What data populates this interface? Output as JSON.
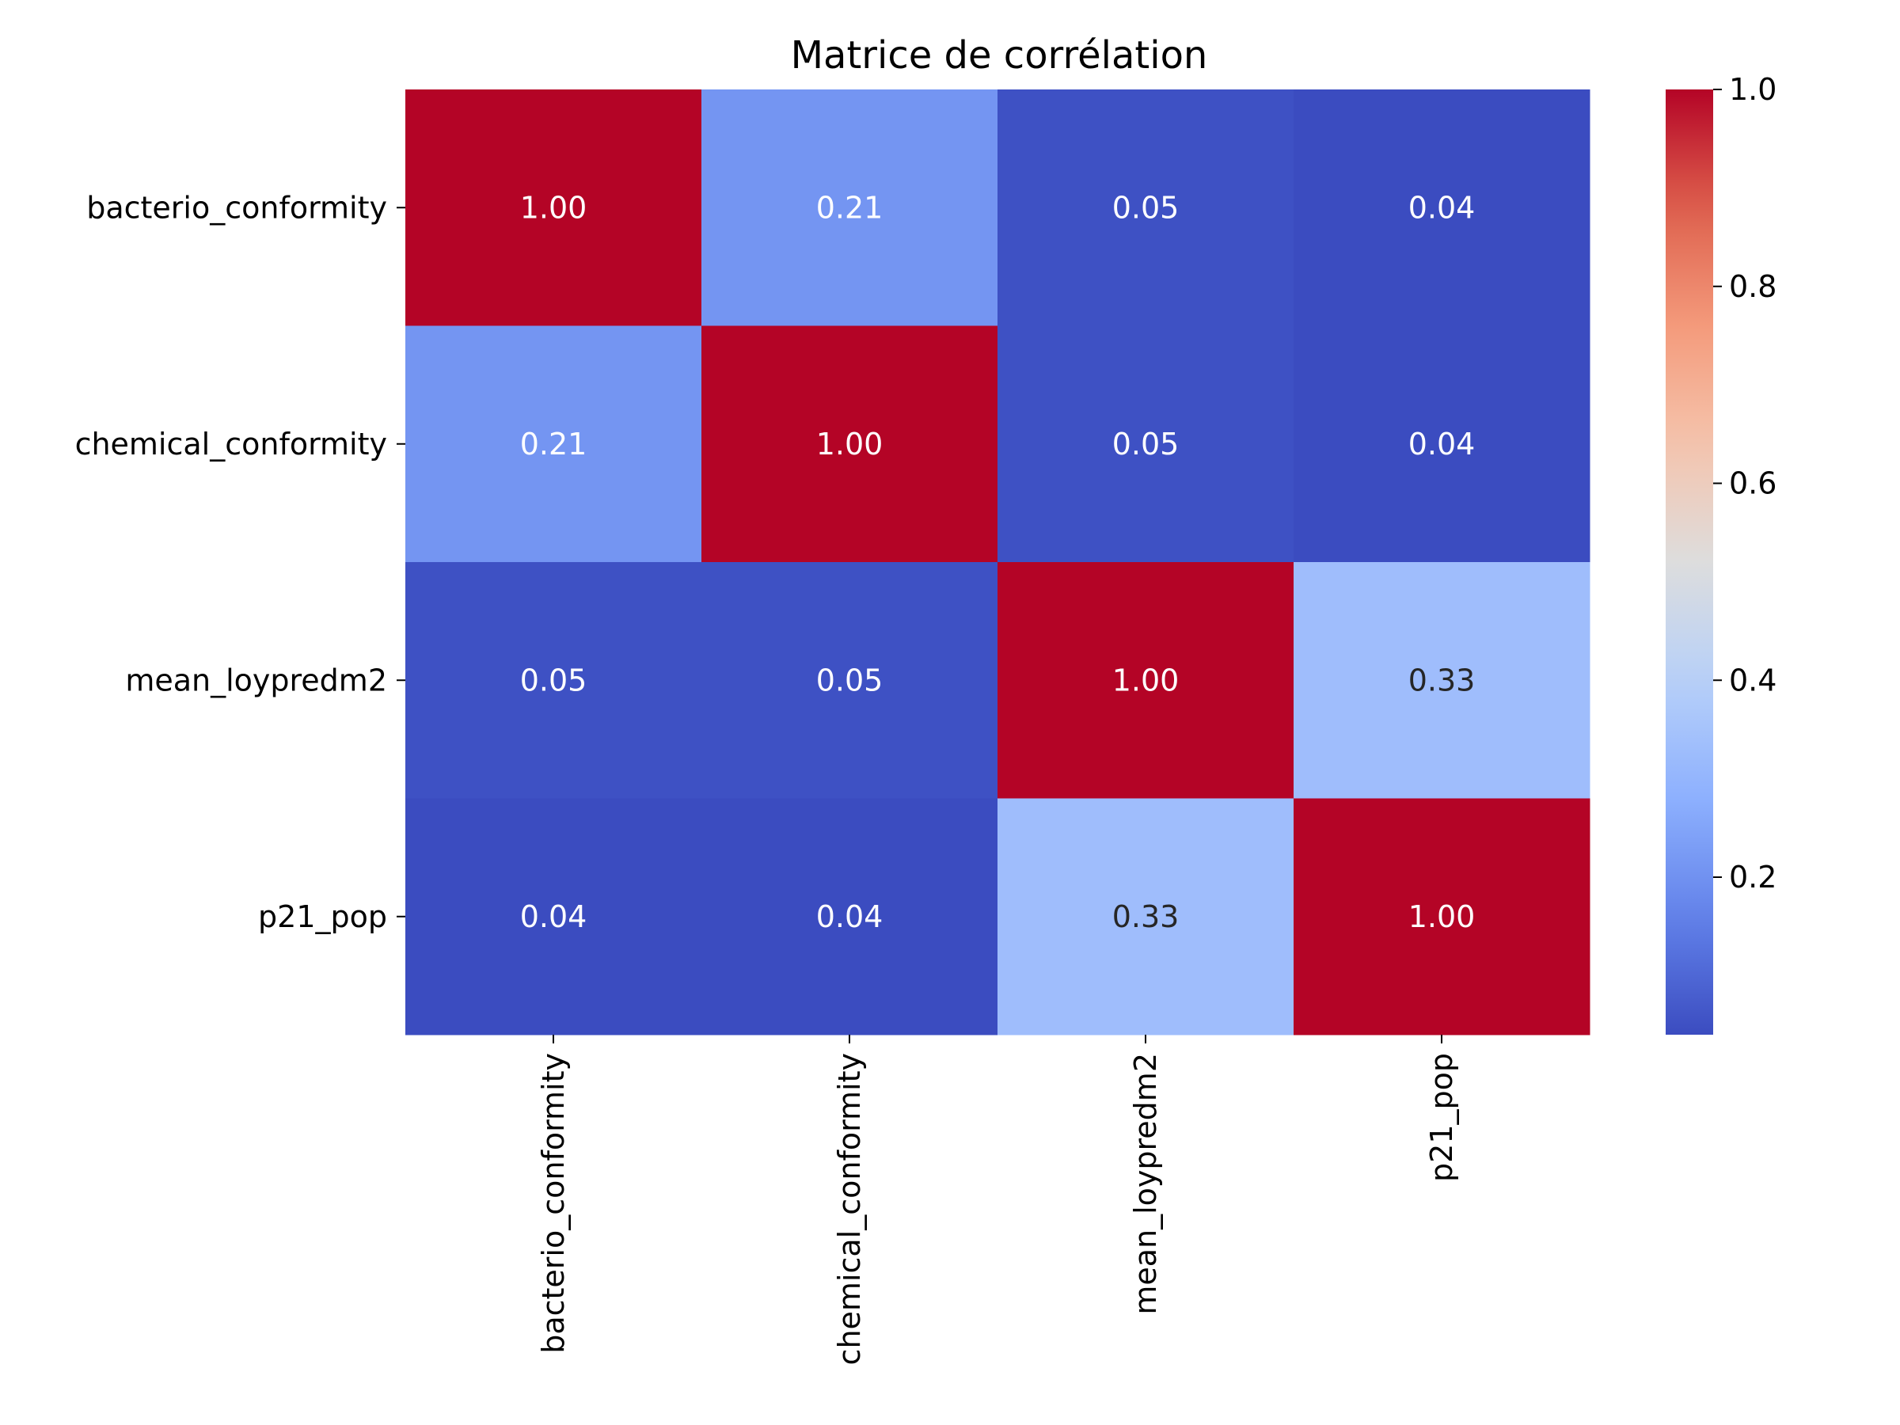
{
  "chart_data": {
    "type": "heatmap",
    "title": "Matrice de corrélation",
    "xlabel": "",
    "ylabel": "",
    "x_categories": [
      "bacterio_conformity",
      "chemical_conformity",
      "mean_loypredm2",
      "p21_pop"
    ],
    "y_categories": [
      "bacterio_conformity",
      "chemical_conformity",
      "mean_loypredm2",
      "p21_pop"
    ],
    "values": [
      [
        1.0,
        0.21,
        0.05,
        0.04
      ],
      [
        0.21,
        1.0,
        0.05,
        0.04
      ],
      [
        0.05,
        0.05,
        1.0,
        0.33
      ],
      [
        0.04,
        0.04,
        0.33,
        1.0
      ]
    ],
    "annotations": [
      [
        "1.00",
        "0.21",
        "0.05",
        "0.04"
      ],
      [
        "0.21",
        "1.00",
        "0.05",
        "0.04"
      ],
      [
        "0.05",
        "0.05",
        "1.00",
        "0.33"
      ],
      [
        "0.04",
        "0.04",
        "0.33",
        "1.00"
      ]
    ],
    "colormap": "coolwarm",
    "colorbar": {
      "range": [
        0.04,
        1.0
      ],
      "ticks": [
        0.2,
        0.4,
        0.6,
        0.8,
        1.0
      ],
      "tick_labels": [
        "0.2",
        "0.4",
        "0.6",
        "0.8",
        "1.0"
      ]
    },
    "x_tick_rotation": "vertical",
    "legend": "colorbar-right",
    "grid": false
  }
}
